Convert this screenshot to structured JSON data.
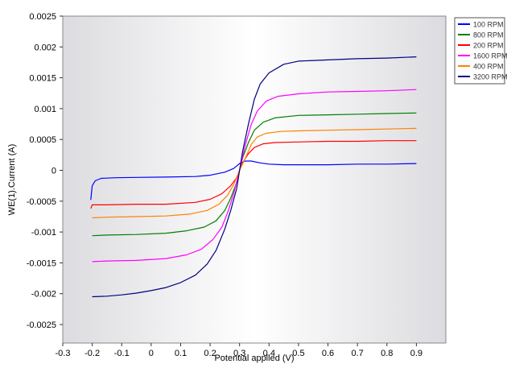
{
  "chart_data": {
    "type": "line",
    "title": "",
    "xlabel": "Potential applied (V)",
    "ylabel": "WE(1).Current (A)",
    "xlim": [
      -0.3,
      1.0
    ],
    "ylim": [
      -0.0028,
      0.0025
    ],
    "x_ticks": [
      -0.3,
      -0.2,
      -0.1,
      0,
      0.1,
      0.2,
      0.3,
      0.4,
      0.5,
      0.6,
      0.7,
      0.8,
      0.9
    ],
    "x_tick_labels": [
      "-0.3",
      "-0.2",
      "-0.1",
      "0",
      "0.1",
      "0.2",
      "0.3",
      "0.4",
      "0.5",
      "0.6",
      "0.7",
      "0.8",
      "0.9"
    ],
    "y_ticks": [
      0.0025,
      0.002,
      0.0015,
      0.001,
      0.0005,
      0,
      -0.0005,
      -0.001,
      -0.0015,
      -0.002,
      -0.0025
    ],
    "y_tick_labels": [
      "0.0025",
      "0.002",
      "0.0015",
      "0.001",
      "0.0005",
      "0",
      "-0.0005",
      "-0.001",
      "-0.0015",
      "-0.002",
      "-0.0025"
    ],
    "grid": false,
    "legend_position": "top-right",
    "series": [
      {
        "name": "100 RPM",
        "color": "#0000ff",
        "points": [
          [
            -0.205,
            -0.00048
          ],
          [
            -0.2,
            -0.00025
          ],
          [
            -0.19,
            -0.00017
          ],
          [
            -0.17,
            -0.00013
          ],
          [
            -0.12,
            -0.00012
          ],
          [
            -0.05,
            -0.000115
          ],
          [
            0.05,
            -0.00011
          ],
          [
            0.15,
            -0.0001
          ],
          [
            0.2,
            -8e-05
          ],
          [
            0.25,
            -3e-05
          ],
          [
            0.28,
            3e-05
          ],
          [
            0.3,
            0.00011
          ],
          [
            0.32,
            0.00015
          ],
          [
            0.34,
            0.00015
          ],
          [
            0.37,
            0.00012
          ],
          [
            0.4,
            0.0001
          ],
          [
            0.45,
            9e-05
          ],
          [
            0.5,
            9e-05
          ],
          [
            0.6,
            9e-05
          ],
          [
            0.7,
            0.0001
          ],
          [
            0.8,
            0.0001
          ],
          [
            0.9,
            0.00011
          ]
        ]
      },
      {
        "name": "800 RPM",
        "color": "#008000",
        "points": [
          [
            -0.2,
            -0.00106
          ],
          [
            -0.15,
            -0.00105
          ],
          [
            -0.05,
            -0.00104
          ],
          [
            0.05,
            -0.00102
          ],
          [
            0.12,
            -0.00098
          ],
          [
            0.18,
            -0.00092
          ],
          [
            0.22,
            -0.00082
          ],
          [
            0.25,
            -0.00065
          ],
          [
            0.27,
            -0.00045
          ],
          [
            0.29,
            -0.0002
          ],
          [
            0.3,
            0.0
          ],
          [
            0.31,
            0.0002
          ],
          [
            0.33,
            0.00045
          ],
          [
            0.35,
            0.00065
          ],
          [
            0.38,
            0.00078
          ],
          [
            0.42,
            0.00085
          ],
          [
            0.5,
            0.00089
          ],
          [
            0.6,
            0.0009
          ],
          [
            0.7,
            0.00091
          ],
          [
            0.8,
            0.00092
          ],
          [
            0.9,
            0.00093
          ]
        ]
      },
      {
        "name": "200 RPM",
        "color": "#ff0000",
        "points": [
          [
            -0.205,
            -0.00062
          ],
          [
            -0.2,
            -0.00056
          ],
          [
            -0.15,
            -0.00056
          ],
          [
            -0.05,
            -0.00055
          ],
          [
            0.05,
            -0.00055
          ],
          [
            0.15,
            -0.00052
          ],
          [
            0.2,
            -0.00047
          ],
          [
            0.24,
            -0.00038
          ],
          [
            0.27,
            -0.00025
          ],
          [
            0.29,
            -0.00012
          ],
          [
            0.3,
            0.0
          ],
          [
            0.31,
            0.00012
          ],
          [
            0.33,
            0.00027
          ],
          [
            0.35,
            0.00037
          ],
          [
            0.38,
            0.00043
          ],
          [
            0.42,
            0.00045
          ],
          [
            0.5,
            0.00046
          ],
          [
            0.6,
            0.00047
          ],
          [
            0.7,
            0.00047
          ],
          [
            0.8,
            0.00048
          ],
          [
            0.9,
            0.00048
          ]
        ]
      },
      {
        "name": "1600 RPM",
        "color": "#ff00ff",
        "points": [
          [
            -0.2,
            -0.00148
          ],
          [
            -0.15,
            -0.00147
          ],
          [
            -0.05,
            -0.00146
          ],
          [
            0.05,
            -0.00143
          ],
          [
            0.12,
            -0.00137
          ],
          [
            0.17,
            -0.00128
          ],
          [
            0.21,
            -0.00112
          ],
          [
            0.24,
            -0.00092
          ],
          [
            0.26,
            -0.00068
          ],
          [
            0.28,
            -0.00038
          ],
          [
            0.3,
            0.0
          ],
          [
            0.32,
            0.00042
          ],
          [
            0.34,
            0.00075
          ],
          [
            0.36,
            0.00096
          ],
          [
            0.39,
            0.00112
          ],
          [
            0.43,
            0.0012
          ],
          [
            0.5,
            0.00124
          ],
          [
            0.6,
            0.00127
          ],
          [
            0.7,
            0.00128
          ],
          [
            0.8,
            0.00129
          ],
          [
            0.9,
            0.00131
          ]
        ]
      },
      {
        "name": "400 RPM",
        "color": "#ff8000",
        "points": [
          [
            -0.2,
            -0.00077
          ],
          [
            -0.15,
            -0.00076
          ],
          [
            -0.05,
            -0.00075
          ],
          [
            0.05,
            -0.00074
          ],
          [
            0.13,
            -0.00071
          ],
          [
            0.19,
            -0.00065
          ],
          [
            0.23,
            -0.00055
          ],
          [
            0.26,
            -0.0004
          ],
          [
            0.28,
            -0.00023
          ],
          [
            0.3,
            0.0
          ],
          [
            0.32,
            0.0002
          ],
          [
            0.34,
            0.00042
          ],
          [
            0.36,
            0.00054
          ],
          [
            0.39,
            0.0006
          ],
          [
            0.44,
            0.00063
          ],
          [
            0.5,
            0.00064
          ],
          [
            0.6,
            0.00065
          ],
          [
            0.7,
            0.00066
          ],
          [
            0.8,
            0.00067
          ],
          [
            0.9,
            0.00068
          ]
        ]
      },
      {
        "name": "3200 RPM",
        "color": "#000080",
        "points": [
          [
            -0.2,
            -0.00205
          ],
          [
            -0.15,
            -0.00204
          ],
          [
            -0.1,
            -0.00202
          ],
          [
            -0.05,
            -0.00199
          ],
          [
            0.0,
            -0.00195
          ],
          [
            0.05,
            -0.0019
          ],
          [
            0.1,
            -0.00182
          ],
          [
            0.15,
            -0.0017
          ],
          [
            0.19,
            -0.00152
          ],
          [
            0.22,
            -0.0013
          ],
          [
            0.25,
            -0.00095
          ],
          [
            0.27,
            -0.00065
          ],
          [
            0.29,
            -0.0003
          ],
          [
            0.3,
            0.0
          ],
          [
            0.31,
            0.0003
          ],
          [
            0.33,
            0.00075
          ],
          [
            0.35,
            0.00115
          ],
          [
            0.37,
            0.0014
          ],
          [
            0.4,
            0.00158
          ],
          [
            0.45,
            0.00172
          ],
          [
            0.5,
            0.00177
          ],
          [
            0.6,
            0.00179
          ],
          [
            0.7,
            0.00181
          ],
          [
            0.8,
            0.00182
          ],
          [
            0.9,
            0.00184
          ]
        ]
      }
    ]
  }
}
